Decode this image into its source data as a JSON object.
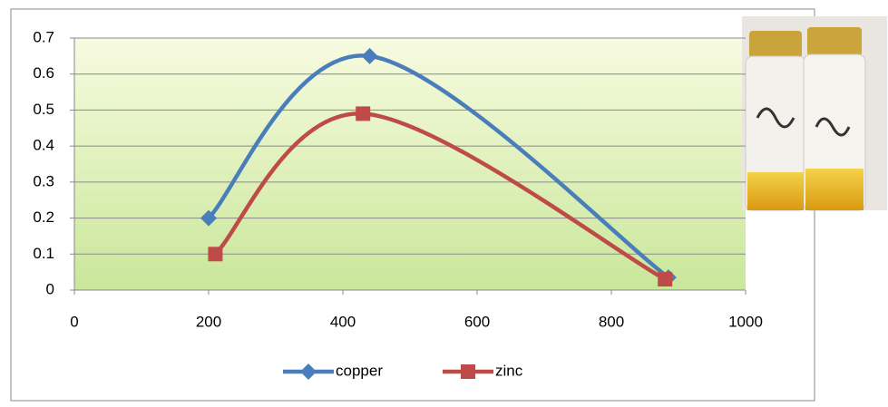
{
  "chart_data": {
    "type": "scatter-line",
    "xlim": [
      0,
      1000
    ],
    "xticks": [
      0,
      200,
      400,
      600,
      800,
      1000
    ],
    "ylim": [
      0,
      0.7
    ],
    "yticks": [
      0,
      0.1,
      0.2,
      0.3,
      0.4,
      0.5,
      0.6,
      0.7
    ],
    "grid": true,
    "smooth": true,
    "legend": "bottom",
    "series": [
      {
        "name": "copper",
        "color": "#4a7ebb",
        "marker": "diamond",
        "x": [
          200,
          440,
          885
        ],
        "values": [
          0.2,
          0.65,
          0.035
        ]
      },
      {
        "name": "zinc",
        "color": "#be4b48",
        "marker": "square",
        "x": [
          210,
          430,
          880
        ],
        "values": [
          0.1,
          0.49,
          0.03
        ]
      }
    ]
  }
}
